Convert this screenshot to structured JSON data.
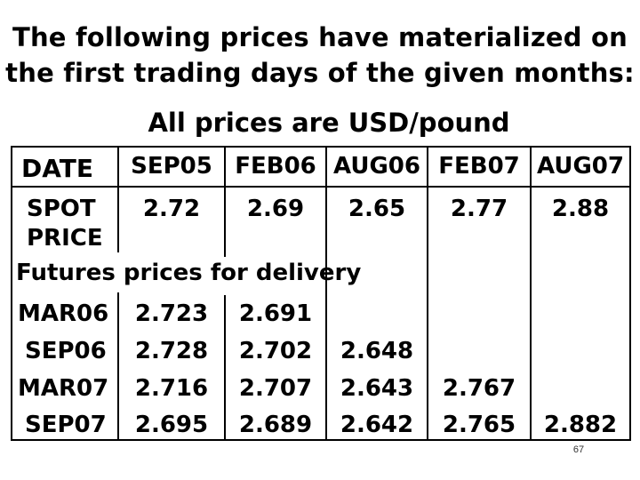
{
  "title_line1": "The following prices have materialized on",
  "title_line2": "the first trading days of the given months:",
  "subtitle": "All prices are USD/pound",
  "table": {
    "date_label": "DATE",
    "dates": [
      "SEP05",
      "FEB06",
      "AUG06",
      "FEB07",
      "AUG07"
    ],
    "spot_label_line1": "SPOT",
    "spot_label_line2": "PRICE",
    "spot": [
      "2.72",
      "2.69",
      "2.65",
      "2.77",
      "2.88"
    ],
    "futures_label": "Futures prices for delivery",
    "futures": [
      {
        "label": "MAR06",
        "values": [
          "2.723",
          "2.691",
          "",
          "",
          ""
        ]
      },
      {
        "label": "SEP06",
        "values": [
          "2.728",
          "2.702",
          "2.648",
          "",
          ""
        ]
      },
      {
        "label": "MAR07",
        "values": [
          "2.716",
          "2.707",
          "2.643",
          "2.767",
          ""
        ]
      },
      {
        "label": "SEP07",
        "values": [
          "2.695",
          "2.689",
          "2.642",
          "2.765",
          "2.882"
        ]
      }
    ]
  },
  "slide_number": "67"
}
